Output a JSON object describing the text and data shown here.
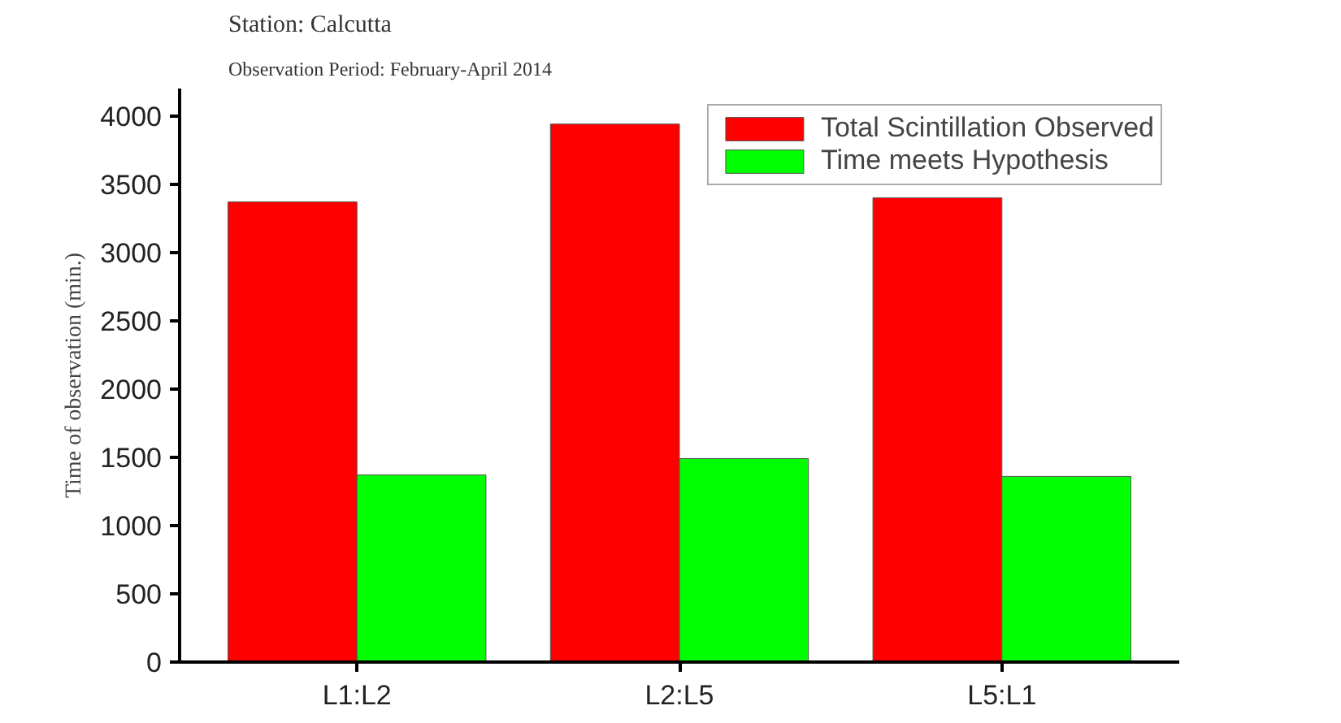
{
  "chart_data": {
    "type": "bar",
    "title": "Station: Calcutta",
    "subtitle": "Observation Period:  February-April 2014",
    "ylabel": "Time of observation (min.)",
    "categories": [
      "L1:L2",
      "L2:L5",
      "L5:L1"
    ],
    "series": [
      {
        "name": "Total Scintillation Observed",
        "color": "#ff0000",
        "values": [
          3370,
          3940,
          3400
        ]
      },
      {
        "name": "Time meets Hypothesis",
        "color": "#00ff00",
        "values": [
          1370,
          1490,
          1360
        ]
      }
    ],
    "ylim": [
      0,
      4200
    ],
    "yticks": [
      0,
      500,
      1000,
      1500,
      2000,
      2500,
      3000,
      3500,
      4000
    ],
    "grid": false,
    "legend": "top right"
  }
}
